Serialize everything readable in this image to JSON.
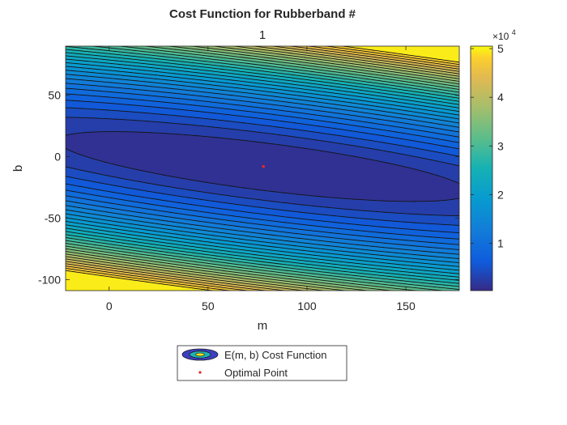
{
  "chart_data": {
    "type": "contour",
    "title": "Cost Function for Rubberband #",
    "subtitle": "1",
    "xlabel": "m",
    "ylabel": "b",
    "xlim": [
      -22,
      177
    ],
    "ylim": [
      -109,
      90
    ],
    "x_ticks": [
      0,
      50,
      100,
      150
    ],
    "y_ticks": [
      -100,
      -50,
      0,
      50
    ],
    "x_tick_labels": [
      "0",
      "50",
      "100",
      "150"
    ],
    "y_tick_labels": [
      "-100",
      "-50",
      "0",
      "50"
    ],
    "colorbar": {
      "ticks": [
        1,
        2,
        3,
        4,
        5
      ],
      "tick_labels": [
        "1",
        "2",
        "3",
        "4",
        "5"
      ],
      "exponent_label": "×10",
      "exponent_power": "4",
      "range": [
        300,
        50500
      ],
      "colormap": "parula"
    },
    "cost_model": {
      "form": "a*(b - b0 + s*(m - m0))^2 + c*(m - m0)^2 + e0",
      "a": 4.3,
      "s": 0.2,
      "c": 0.15,
      "e0": 300
    },
    "contour_levels": 30,
    "optimal_point": {
      "m": 78,
      "b": -8,
      "color": "#e3282a"
    },
    "legend": {
      "placement": "bottom-center",
      "entries": [
        {
          "label": "E(m, b) Cost Function",
          "marker": "contour-ellipse"
        },
        {
          "label": "Optimal Point",
          "marker": "dot",
          "color": "#e3282a"
        }
      ]
    },
    "grid": false
  }
}
